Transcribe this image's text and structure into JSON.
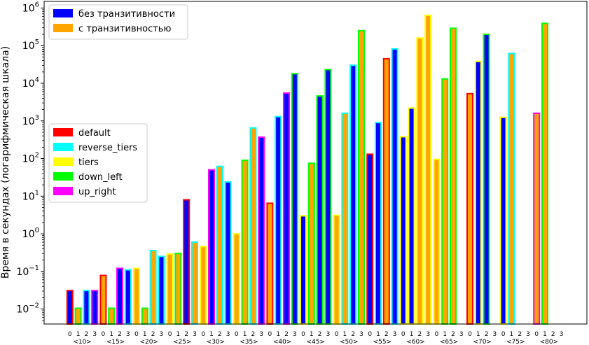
{
  "chart_data": {
    "type": "bar",
    "ylabel": "Время в секундах (логарифмическая шкала)",
    "yscale": "log",
    "ylim": [
      0.004,
      1500000
    ],
    "ytick_values": [
      0.01,
      0.1,
      1,
      10,
      100,
      1000,
      10000,
      100000,
      1000000
    ],
    "ytick_labels": [
      {
        "base": "10",
        "exp": "−2"
      },
      {
        "base": "10",
        "exp": "−1"
      },
      {
        "base": "10",
        "exp": "0"
      },
      {
        "base": "10",
        "exp": "1"
      },
      {
        "base": "10",
        "exp": "2"
      },
      {
        "base": "10",
        "exp": "3"
      },
      {
        "base": "10",
        "exp": "4"
      },
      {
        "base": "10",
        "exp": "5"
      },
      {
        "base": "10",
        "exp": "6"
      }
    ],
    "inner_labels": [
      "0",
      "1",
      "2",
      "3"
    ],
    "fill_legend": [
      {
        "label": "без транзитивности",
        "color": "#0000ff"
      },
      {
        "label": "с транзитивностью",
        "color": "#ffa500"
      }
    ],
    "edge_legend": [
      {
        "label": "default",
        "color": "#ff0000"
      },
      {
        "label": "reverse_tiers",
        "color": "#00ffff"
      },
      {
        "label": "tiers",
        "color": "#ffff00"
      },
      {
        "label": "down_left",
        "color": "#00ff00"
      },
      {
        "label": "up_right",
        "color": "#ff00ff"
      }
    ],
    "groups": [
      {
        "label": "<10>",
        "bars": [
          {
            "slot": 0,
            "value": 0.031,
            "fill": "blue",
            "edge": "default"
          },
          {
            "slot": 1,
            "value": 0.0105,
            "fill": "orange",
            "edge": "down_left"
          },
          {
            "slot": 2,
            "value": 0.031,
            "fill": "blue",
            "edge": "reverse_tiers"
          },
          {
            "slot": 3,
            "value": 0.031,
            "fill": "blue",
            "edge": "up_right"
          }
        ]
      },
      {
        "label": "<15>",
        "bars": [
          {
            "slot": 0,
            "value": 0.078,
            "fill": "orange",
            "edge": "default"
          },
          {
            "slot": 1,
            "value": 0.0105,
            "fill": "orange",
            "edge": "down_left"
          },
          {
            "slot": 2,
            "value": 0.121,
            "fill": "blue",
            "edge": "up_right"
          },
          {
            "slot": 3,
            "value": 0.11,
            "fill": "blue",
            "edge": "reverse_tiers"
          }
        ]
      },
      {
        "label": "<20>",
        "bars": [
          {
            "slot": 0,
            "value": 0.121,
            "fill": "orange",
            "edge": "tiers"
          },
          {
            "slot": 1,
            "value": 0.0105,
            "fill": "orange",
            "edge": "down_left"
          },
          {
            "slot": 2,
            "value": 0.359,
            "fill": "orange",
            "edge": "reverse_tiers"
          },
          {
            "slot": 3,
            "value": 0.25,
            "fill": "blue",
            "edge": "reverse_tiers"
          }
        ]
      },
      {
        "label": "<25>",
        "bars": [
          {
            "slot": 0,
            "value": 0.29,
            "fill": "orange",
            "edge": "tiers"
          },
          {
            "slot": 1,
            "value": 0.3,
            "fill": "orange",
            "edge": "down_left"
          },
          {
            "slot": 2,
            "value": 8.0,
            "fill": "blue",
            "edge": "default"
          },
          {
            "slot": 3,
            "value": 0.6,
            "fill": "orange",
            "edge": "reverse_tiers"
          }
        ]
      },
      {
        "label": "<30>",
        "bars": [
          {
            "slot": 0,
            "value": 0.46,
            "fill": "orange",
            "edge": "tiers"
          },
          {
            "slot": 1,
            "value": 50,
            "fill": "blue",
            "edge": "up_right"
          },
          {
            "slot": 2,
            "value": 62,
            "fill": "orange",
            "edge": "reverse_tiers"
          },
          {
            "slot": 3,
            "value": 24,
            "fill": "blue",
            "edge": "reverse_tiers"
          }
        ]
      },
      {
        "label": "<35>",
        "bars": [
          {
            "slot": 0,
            "value": 1.0,
            "fill": "orange",
            "edge": "tiers"
          },
          {
            "slot": 1,
            "value": 90,
            "fill": "orange",
            "edge": "down_left"
          },
          {
            "slot": 2,
            "value": 650,
            "fill": "orange",
            "edge": "reverse_tiers"
          },
          {
            "slot": 3,
            "value": 370,
            "fill": "blue",
            "edge": "up_right"
          }
        ]
      },
      {
        "label": "<40>",
        "bars": [
          {
            "slot": 0,
            "value": 6.5,
            "fill": "orange",
            "edge": "default"
          },
          {
            "slot": 1,
            "value": 1300,
            "fill": "blue",
            "edge": "reverse_tiers"
          },
          {
            "slot": 2,
            "value": 5500,
            "fill": "blue",
            "edge": "up_right"
          },
          {
            "slot": 3,
            "value": 18000,
            "fill": "blue",
            "edge": "down_left"
          }
        ]
      },
      {
        "label": "<45>",
        "bars": [
          {
            "slot": 0,
            "value": 3.0,
            "fill": "blue",
            "edge": "tiers"
          },
          {
            "slot": 1,
            "value": 75,
            "fill": "orange",
            "edge": "down_left"
          },
          {
            "slot": 2,
            "value": 4600,
            "fill": "blue",
            "edge": "down_left"
          },
          {
            "slot": 3,
            "value": 23000,
            "fill": "blue",
            "edge": "down_left"
          }
        ]
      },
      {
        "label": "<50>",
        "bars": [
          {
            "slot": 0,
            "value": 3.1,
            "fill": "orange",
            "edge": "tiers"
          },
          {
            "slot": 1,
            "value": 1600,
            "fill": "orange",
            "edge": "reverse_tiers"
          },
          {
            "slot": 2,
            "value": 30000,
            "fill": "blue",
            "edge": "reverse_tiers"
          },
          {
            "slot": 3,
            "value": 250000,
            "fill": "orange",
            "edge": "down_left"
          }
        ]
      },
      {
        "label": "<55>",
        "bars": [
          {
            "slot": 0,
            "value": 130,
            "fill": "blue",
            "edge": "default"
          },
          {
            "slot": 1,
            "value": 900,
            "fill": "blue",
            "edge": "reverse_tiers"
          },
          {
            "slot": 2,
            "value": 45000,
            "fill": "orange",
            "edge": "default"
          },
          {
            "slot": 3,
            "value": 82000,
            "fill": "blue",
            "edge": "reverse_tiers"
          }
        ]
      },
      {
        "label": "<60>",
        "bars": [
          {
            "slot": 0,
            "value": 380,
            "fill": "blue",
            "edge": "tiers"
          },
          {
            "slot": 1,
            "value": 2200,
            "fill": "blue",
            "edge": "tiers"
          },
          {
            "slot": 2,
            "value": 160000,
            "fill": "orange",
            "edge": "tiers"
          },
          {
            "slot": 3,
            "value": 640000,
            "fill": "orange",
            "edge": "tiers"
          }
        ]
      },
      {
        "label": "<65>",
        "bars": [
          {
            "slot": 0,
            "value": 95,
            "fill": "orange",
            "edge": "tiers"
          },
          {
            "slot": 1,
            "value": 13000,
            "fill": "orange",
            "edge": "down_left"
          },
          {
            "slot": 2,
            "value": 290000,
            "fill": "orange",
            "edge": "down_left"
          }
        ]
      },
      {
        "label": "<70>",
        "bars": [
          {
            "slot": 0,
            "value": 5300,
            "fill": "orange",
            "edge": "default"
          },
          {
            "slot": 1,
            "value": 38000,
            "fill": "blue",
            "edge": "tiers"
          },
          {
            "slot": 2,
            "value": 200000,
            "fill": "blue",
            "edge": "down_left"
          }
        ]
      },
      {
        "label": "<75>",
        "bars": [
          {
            "slot": 0,
            "value": 1250,
            "fill": "blue",
            "edge": "tiers"
          },
          {
            "slot": 1,
            "value": 62000,
            "fill": "orange",
            "edge": "reverse_tiers"
          }
        ]
      },
      {
        "label": "<80>",
        "bars": [
          {
            "slot": 0,
            "value": 1600,
            "fill": "orange",
            "edge": "up_right"
          },
          {
            "slot": 1,
            "value": 390000,
            "fill": "orange",
            "edge": "down_left"
          }
        ]
      }
    ]
  }
}
